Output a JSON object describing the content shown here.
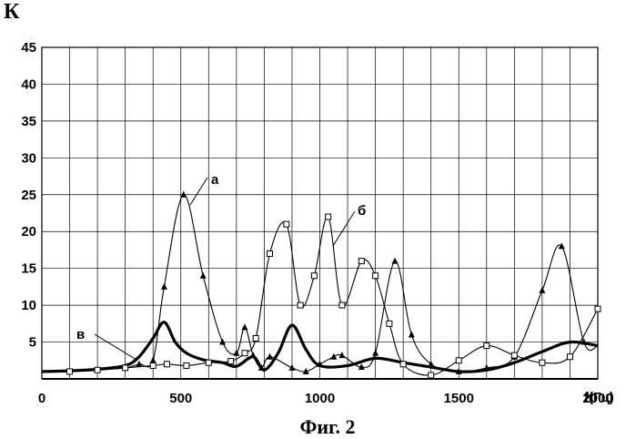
{
  "chart_data": {
    "type": "line",
    "ylabel": "К",
    "xlabel": "f(Гц)",
    "caption": "Фиг. 2",
    "xlim": [
      0,
      2000
    ],
    "ylim": [
      0,
      45
    ],
    "x_ticks": [
      0,
      500,
      1000,
      1500,
      2000
    ],
    "y_ticks": [
      5,
      10,
      15,
      20,
      25,
      30,
      35,
      40,
      45
    ],
    "grid": true,
    "series": [
      {
        "name": "а",
        "marker": "triangle",
        "line_weight": "thin",
        "x": [
          0,
          100,
          200,
          300,
          350,
          400,
          440,
          510,
          580,
          650,
          700,
          730,
          760,
          790,
          820,
          900,
          950,
          1000,
          1050,
          1080,
          1150,
          1200,
          1270,
          1330,
          1400,
          1500,
          1600,
          1700,
          1800,
          1870,
          1950,
          2000
        ],
        "values": [
          1,
          1,
          1.2,
          1.5,
          2,
          2.5,
          12.5,
          25,
          14,
          5,
          3.5,
          7,
          3.2,
          1.5,
          3,
          1.5,
          1,
          2,
          3,
          3.2,
          1.6,
          3.5,
          16,
          6,
          2,
          1,
          1.5,
          3,
          12,
          18,
          5,
          4.5
        ]
      },
      {
        "name": "б",
        "marker": "square",
        "line_weight": "thin",
        "x": [
          0,
          100,
          200,
          300,
          400,
          450,
          520,
          600,
          680,
          730,
          770,
          820,
          880,
          930,
          980,
          1030,
          1080,
          1150,
          1200,
          1250,
          1300,
          1400,
          1500,
          1600,
          1700,
          1800,
          1900,
          2000
        ],
        "values": [
          1,
          1,
          1.2,
          1.5,
          1.8,
          2,
          1.8,
          2.2,
          2.4,
          3.5,
          5.5,
          17,
          21,
          10,
          14,
          22,
          10,
          16,
          14,
          7.5,
          2,
          0.5,
          2.5,
          4.5,
          3.2,
          2.2,
          3,
          9.5
        ]
      },
      {
        "name": "в",
        "marker": "none",
        "line_weight": "thick",
        "x": [
          0,
          100,
          200,
          300,
          350,
          400,
          440,
          480,
          520,
          580,
          650,
          700,
          760,
          800,
          850,
          900,
          950,
          1000,
          1100,
          1200,
          1300,
          1400,
          1500,
          1600,
          1700,
          1800,
          1900,
          2000
        ],
        "values": [
          1,
          1.1,
          1.3,
          1.8,
          3,
          5.5,
          7.7,
          5,
          3.5,
          2.6,
          2.2,
          1.7,
          3,
          1.2,
          3.5,
          7.3,
          4,
          1.8,
          1.8,
          2.8,
          2.2,
          1.6,
          1,
          1.2,
          2.2,
          3.7,
          5,
          4.5
        ]
      }
    ]
  }
}
